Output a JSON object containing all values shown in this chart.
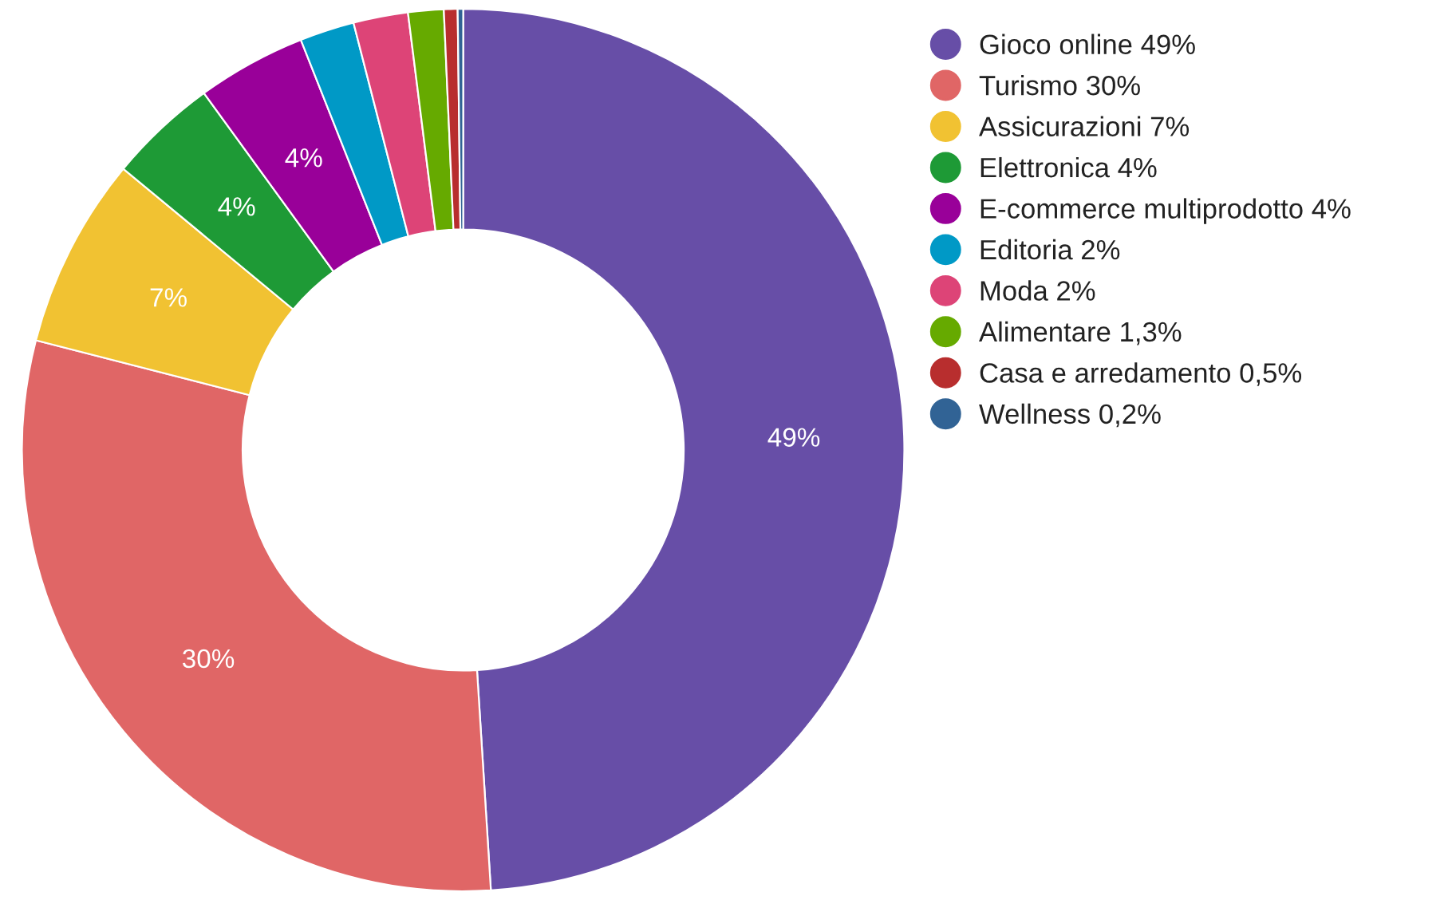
{
  "chart_data": {
    "type": "donut",
    "categories": [
      "Gioco online 49%",
      "Turismo 30%",
      "Assicurazioni 7%",
      "Elettronica 4%",
      "E-commerce multiprodotto 4%",
      "Editoria 2%",
      "Moda 2%",
      "Alimentare 1,3%",
      "Casa e arredamento 0,5%",
      "Wellness 0,2%"
    ],
    "values": [
      49,
      30,
      7,
      4,
      4,
      2,
      2,
      1.3,
      0.5,
      0.2
    ],
    "colors": [
      "#674ea7",
      "#e06666",
      "#f1c232",
      "#1e9a36",
      "#990099",
      "#0099c6",
      "#dd4477",
      "#66aa00",
      "#b82e2e",
      "#316395"
    ],
    "value_labels": [
      "49%",
      "30%",
      "7%",
      "4%",
      "4%",
      null,
      null,
      null,
      null,
      null
    ],
    "legend": "right"
  }
}
